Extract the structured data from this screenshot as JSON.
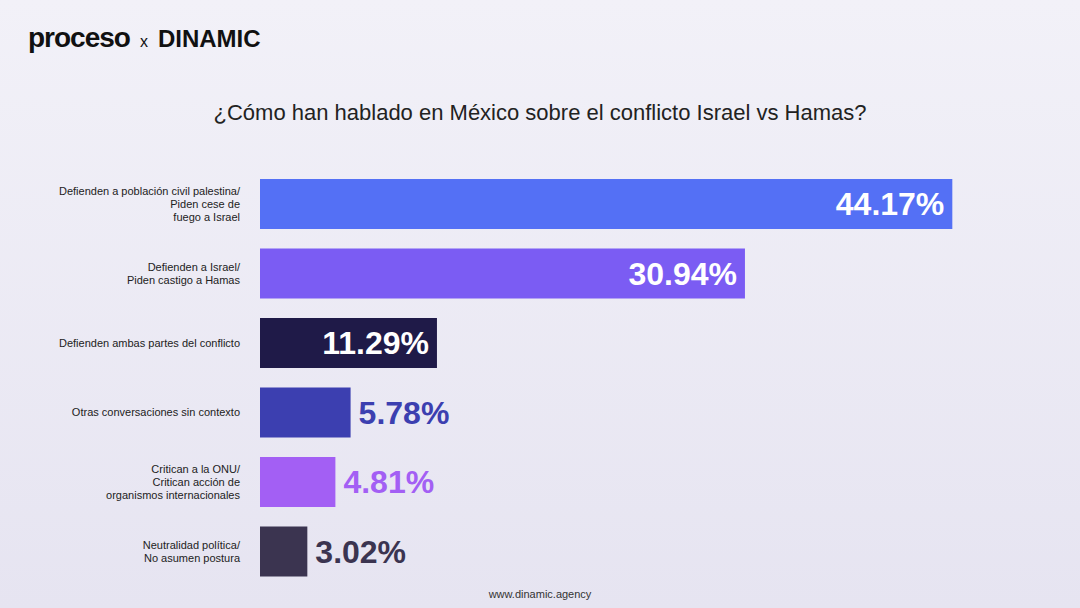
{
  "header": {
    "brand": "proceso",
    "separator": "x",
    "partner": "DINAMIC"
  },
  "footer": "www.dinamic.agency",
  "chart_data": {
    "type": "bar",
    "orientation": "horizontal",
    "title": "¿Cómo han hablado en México sobre el conflicto Israel vs Hamas?",
    "categories": [
      "Defienden a población civil palestina/ Piden cese de fuego a Israel",
      "Defienden a Israel/ Piden castigo a Hamas",
      "Defienden ambas partes del conflicto",
      "Otras conversaciones sin contexto",
      "Critican a la ONU/ Critican acción de organismos internacionales",
      "Neutralidad política/ No asumen postura"
    ],
    "values": [
      44.17,
      30.94,
      11.29,
      5.78,
      4.81,
      3.02
    ],
    "value_labels": [
      "44.17%",
      "30.94%",
      "11.29%",
      "5.78%",
      "4.81%",
      "3.02%"
    ],
    "colors": [
      "#5470f5",
      "#7b5cf3",
      "#1f1a48",
      "#3c3fb0",
      "#a35ff4",
      "#3b3450"
    ],
    "xlim": [
      0,
      46
    ],
    "data_labels": true,
    "tick_labels": "y",
    "grid": false
  }
}
